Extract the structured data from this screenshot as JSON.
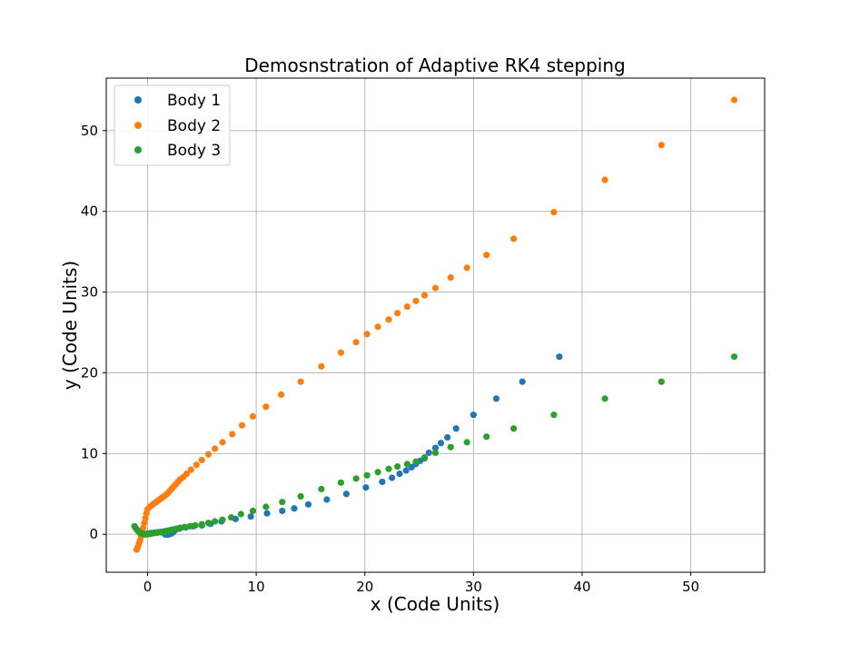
{
  "chart_data": {
    "type": "scatter",
    "title": "Demosnstration of Adaptive RK4 stepping",
    "xlabel": "x (Code Units)",
    "ylabel": "y (Code Units)",
    "xlim": [
      -3.8,
      56.8
    ],
    "ylim": [
      -4.7,
      56.5
    ],
    "xticks": [
      0,
      10,
      20,
      30,
      40,
      50
    ],
    "yticks": [
      0,
      10,
      20,
      30,
      40,
      50
    ],
    "grid": true,
    "legend_position": "top-left",
    "series": [
      {
        "name": "Body 1",
        "color": "#1f77b4",
        "x": [
          -0.6,
          -0.3,
          0.0,
          0.3,
          0.6,
          0.9,
          1.2,
          1.5,
          1.7,
          1.9,
          2.1,
          2.3,
          2.5,
          2.7,
          2.9,
          3.0,
          1.6,
          1.8,
          2.0,
          2.2,
          2.4,
          3.5,
          4.2,
          5.0,
          5.8,
          6.8,
          8.1,
          9.5,
          11.0,
          12.4,
          13.5,
          14.8,
          16.5,
          18.3,
          20.1,
          21.6,
          22.5,
          23.2,
          23.8,
          24.3,
          24.7,
          25.1,
          25.5,
          25.9,
          26.5,
          27.0,
          27.6,
          28.4,
          30.0,
          32.1,
          34.5,
          37.9
        ],
        "y": [
          0.0,
          0.05,
          0.1,
          0.15,
          0.2,
          0.25,
          0.3,
          0.35,
          0.4,
          0.45,
          0.5,
          0.55,
          0.6,
          0.65,
          0.7,
          0.75,
          0.0,
          -0.05,
          0.0,
          0.1,
          0.3,
          0.85,
          1.0,
          1.1,
          1.3,
          1.6,
          1.9,
          2.2,
          2.6,
          2.9,
          3.2,
          3.7,
          4.3,
          5.0,
          5.8,
          6.5,
          7.0,
          7.5,
          7.9,
          8.3,
          8.7,
          9.1,
          9.5,
          10.1,
          10.7,
          11.3,
          12.0,
          13.1,
          14.8,
          16.8,
          18.9,
          22.0
        ]
      },
      {
        "name": "Body 2",
        "color": "#ff7f0e",
        "x": [
          -1.0,
          -0.9,
          -0.8,
          -0.7,
          -0.6,
          -0.5,
          -0.4,
          -0.3,
          -0.2,
          -0.1,
          0.0,
          0.2,
          0.4,
          0.6,
          0.8,
          1.0,
          1.2,
          1.4,
          1.6,
          1.8,
          2.0,
          2.2,
          2.4,
          2.6,
          2.8,
          3.0,
          3.3,
          3.6,
          4.0,
          4.5,
          5.0,
          5.6,
          6.2,
          6.9,
          7.8,
          8.7,
          9.7,
          10.9,
          12.3,
          14.1,
          16.0,
          17.8,
          19.2,
          20.2,
          21.2,
          22.2,
          23.0,
          23.9,
          24.7,
          25.5,
          26.5,
          27.9,
          29.4,
          31.2,
          33.7,
          37.4,
          42.1,
          47.3,
          54.0
        ],
        "y": [
          -1.9,
          -1.6,
          -1.2,
          -0.8,
          -0.3,
          0.2,
          0.8,
          1.4,
          2.0,
          2.6,
          3.1,
          3.4,
          3.6,
          3.8,
          4.0,
          4.2,
          4.4,
          4.6,
          4.8,
          5.0,
          5.3,
          5.6,
          5.9,
          6.2,
          6.5,
          6.8,
          7.1,
          7.5,
          8.0,
          8.6,
          9.2,
          9.9,
          10.6,
          11.4,
          12.4,
          13.5,
          14.6,
          15.8,
          17.3,
          18.9,
          20.8,
          22.5,
          23.8,
          24.8,
          25.7,
          26.6,
          27.4,
          28.2,
          28.9,
          29.6,
          30.5,
          31.8,
          33.0,
          34.6,
          36.6,
          39.9,
          43.9,
          48.2,
          53.8
        ]
      },
      {
        "name": "Body 3",
        "color": "#2ca02c",
        "x": [
          -1.2,
          -1.1,
          -1.0,
          -0.9,
          -0.8,
          -0.7,
          -0.6,
          -0.4,
          -0.2,
          0.0,
          0.2,
          0.4,
          0.6,
          0.9,
          1.2,
          1.5,
          1.8,
          2.1,
          2.4,
          2.7,
          3.0,
          3.4,
          3.9,
          4.4,
          5.0,
          5.6,
          6.2,
          6.9,
          7.7,
          8.6,
          9.7,
          10.9,
          12.4,
          14.1,
          16.0,
          17.8,
          19.2,
          20.2,
          21.2,
          22.2,
          23.0,
          23.9,
          24.7,
          25.5,
          26.5,
          27.9,
          29.4,
          31.2,
          33.7,
          37.4,
          42.1,
          47.3,
          54.0
        ],
        "y": [
          1.0,
          0.8,
          0.6,
          0.45,
          0.3,
          0.2,
          0.1,
          0.05,
          0.0,
          0.0,
          0.05,
          0.1,
          0.15,
          0.2,
          0.25,
          0.3,
          0.4,
          0.5,
          0.6,
          0.7,
          0.8,
          0.9,
          1.0,
          1.1,
          1.25,
          1.4,
          1.6,
          1.8,
          2.1,
          2.5,
          2.9,
          3.4,
          4.0,
          4.7,
          5.6,
          6.4,
          6.9,
          7.3,
          7.7,
          8.1,
          8.4,
          8.7,
          9.0,
          9.4,
          10.1,
          10.8,
          11.4,
          12.1,
          13.1,
          14.8,
          16.8,
          18.9,
          22.0
        ]
      }
    ]
  }
}
